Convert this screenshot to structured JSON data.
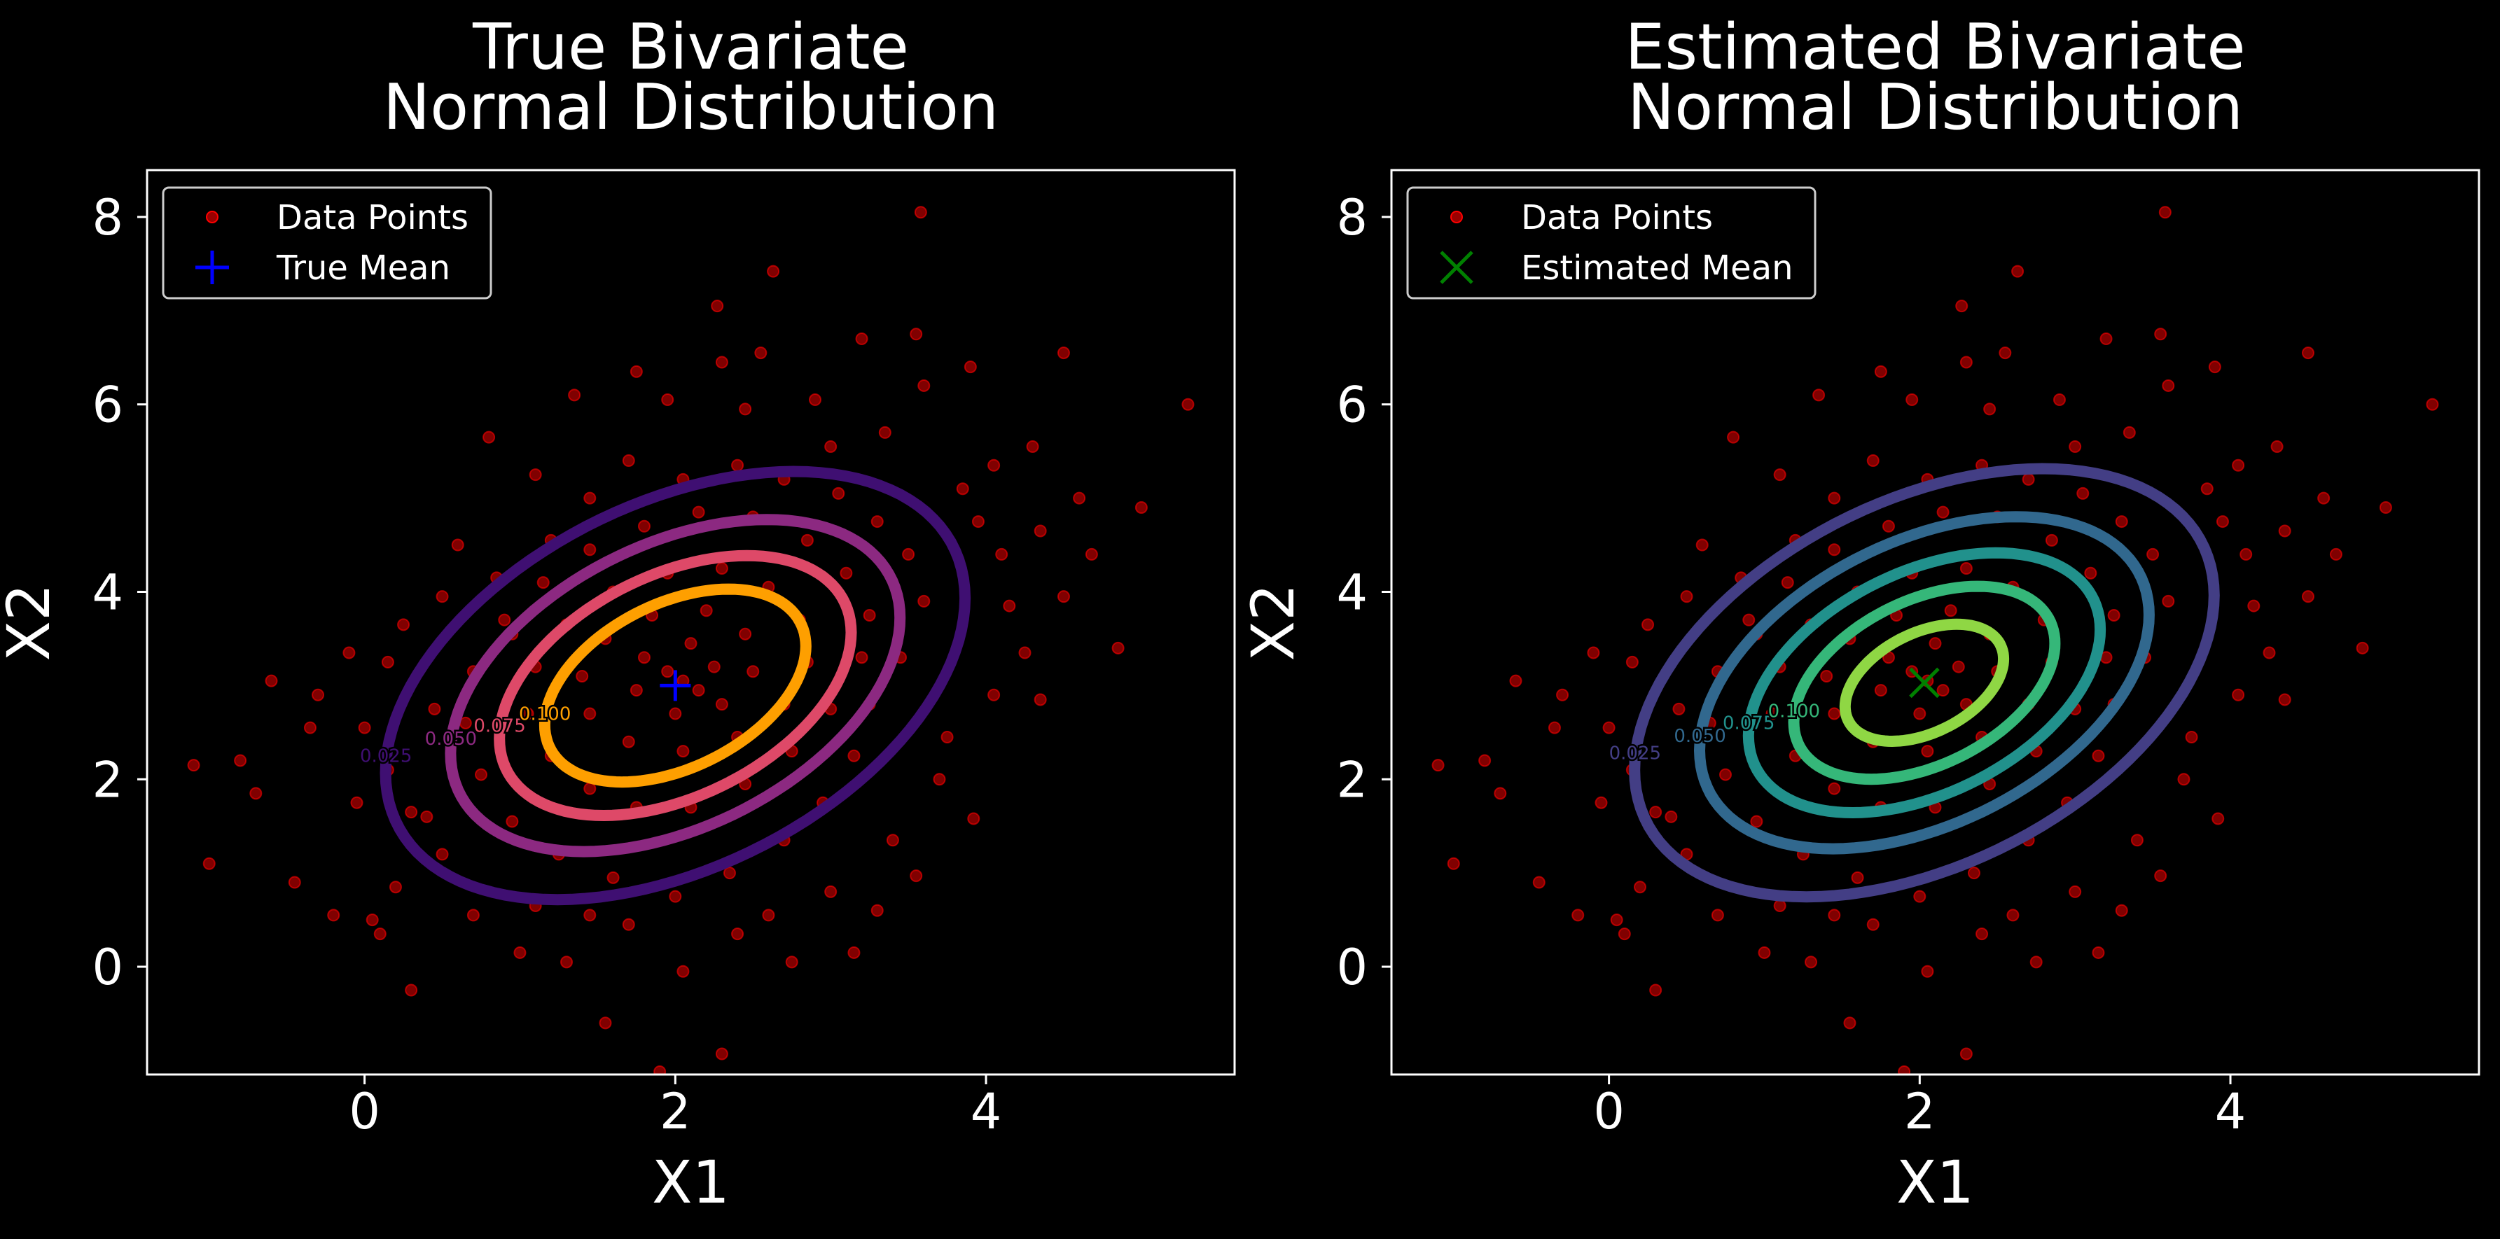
{
  "figure": {
    "background": "#000000",
    "foreground": "#ffffff"
  },
  "chart_data": [
    {
      "type": "scatter",
      "title": "True Bivariate\nNormal Distribution",
      "xlabel": "X1",
      "ylabel": "X2",
      "xlim": [
        -1.4,
        5.6
      ],
      "ylim": [
        -1.15,
        8.5
      ],
      "xticks": [
        0,
        2,
        4
      ],
      "yticks": [
        0,
        2,
        4,
        6,
        8
      ],
      "grid": false,
      "legend": {
        "location": "upper-left",
        "entries": [
          {
            "label": "Data Points",
            "marker": "dot",
            "color": "#ff0000"
          },
          {
            "label": "True Mean",
            "marker": "plus",
            "color": "#0000ff"
          }
        ]
      },
      "mean": {
        "x": 2.0,
        "y": 3.0,
        "marker": "plus",
        "color": "#0000ff"
      },
      "contours": {
        "center": [
          2.0,
          3.0
        ],
        "covariance": [
          [
            1.0,
            0.5
          ],
          [
            0.5,
            1.5
          ]
        ],
        "levels": [
          {
            "level": 0.025,
            "label": "0.025",
            "color": "#3f0f72"
          },
          {
            "level": 0.05,
            "label": "0.050",
            "color": "#8c2981"
          },
          {
            "level": 0.075,
            "label": "0.075",
            "color": "#de4968"
          },
          {
            "level": 0.1,
            "label": "0.100",
            "color": "#fe9f00"
          }
        ]
      },
      "point_color": "#ff0000"
    },
    {
      "type": "scatter",
      "title": "Estimated Bivariate\nNormal Distribution",
      "xlabel": "X1",
      "ylabel": "X2",
      "xlim": [
        -1.4,
        5.6
      ],
      "ylim": [
        -1.15,
        8.5
      ],
      "xticks": [
        0,
        2,
        4
      ],
      "yticks": [
        0,
        2,
        4,
        6,
        8
      ],
      "grid": false,
      "legend": {
        "location": "upper-left",
        "entries": [
          {
            "label": "Data Points",
            "marker": "dot",
            "color": "#ff0000"
          },
          {
            "label": "Estimated Mean",
            "marker": "x",
            "color": "#008000"
          }
        ]
      },
      "mean": {
        "x": 2.03,
        "y": 3.03,
        "marker": "x",
        "color": "#008000"
      },
      "contours": {
        "center": [
          2.03,
          3.03
        ],
        "covariance": [
          [
            1.0,
            0.5
          ],
          [
            0.5,
            1.5
          ]
        ],
        "levels": [
          {
            "level": 0.025,
            "label": "0.025",
            "color": "#433e85"
          },
          {
            "level": 0.05,
            "label": "0.050",
            "color": "#31688e"
          },
          {
            "level": 0.075,
            "label": "0.075",
            "color": "#21918c"
          },
          {
            "level": 0.1,
            "label": "0.100",
            "color": "#35b779"
          },
          {
            "level": 0.125,
            "label": "",
            "color": "#8fd744"
          }
        ]
      },
      "point_color": "#ff0000"
    }
  ],
  "shared_points": [
    [
      5.3,
      6.0
    ],
    [
      3.58,
      8.05
    ],
    [
      2.27,
      7.05
    ],
    [
      2.63,
      7.42
    ],
    [
      4.85,
      3.4
    ],
    [
      4.68,
      4.4
    ],
    [
      4.5,
      6.55
    ],
    [
      4.35,
      4.65
    ],
    [
      4.15,
      3.85
    ],
    [
      3.92,
      1.58
    ],
    [
      3.55,
      6.75
    ],
    [
      3.2,
      6.7
    ],
    [
      3.55,
      0.97
    ],
    [
      3.15,
      0.15
    ],
    [
      2.3,
      -0.93
    ],
    [
      1.9,
      -1.12
    ],
    [
      1.55,
      -0.6
    ],
    [
      1.3,
      0.05
    ],
    [
      -1.1,
      2.15
    ],
    [
      -1.0,
      1.1
    ],
    [
      -0.7,
      1.85
    ],
    [
      -0.8,
      2.2
    ],
    [
      -0.45,
      0.9
    ],
    [
      -0.35,
      2.55
    ],
    [
      -0.2,
      0.55
    ],
    [
      0.05,
      0.5
    ],
    [
      0.3,
      -0.25
    ],
    [
      0.2,
      0.85
    ],
    [
      0.0,
      2.55
    ],
    [
      -0.1,
      3.35
    ],
    [
      0.15,
      3.25
    ],
    [
      0.6,
      4.5
    ],
    [
      0.8,
      5.65
    ],
    [
      1.1,
      5.25
    ],
    [
      1.35,
      6.1
    ],
    [
      1.95,
      6.05
    ],
    [
      2.3,
      6.45
    ],
    [
      2.45,
      5.95
    ],
    [
      2.9,
      6.05
    ],
    [
      3.0,
      5.55
    ],
    [
      3.35,
      5.7
    ],
    [
      3.6,
      6.2
    ],
    [
      3.85,
      5.1
    ],
    [
      4.05,
      5.35
    ],
    [
      4.3,
      5.55
    ],
    [
      4.1,
      4.4
    ],
    [
      4.5,
      3.95
    ],
    [
      4.35,
      2.85
    ],
    [
      4.25,
      3.35
    ],
    [
      3.75,
      2.45
    ],
    [
      3.4,
      1.35
    ],
    [
      3.3,
      0.6
    ],
    [
      3.0,
      0.8
    ],
    [
      2.75,
      0.05
    ],
    [
      2.4,
      0.35
    ],
    [
      2.05,
      -0.05
    ],
    [
      1.7,
      0.45
    ],
    [
      1.45,
      0.55
    ],
    [
      1.0,
      0.15
    ],
    [
      0.7,
      0.55
    ],
    [
      0.5,
      1.2
    ],
    [
      0.3,
      1.65
    ],
    [
      0.15,
      2.1
    ],
    [
      0.45,
      2.75
    ],
    [
      0.25,
      3.65
    ],
    [
      0.5,
      3.95
    ],
    [
      0.85,
      4.15
    ],
    [
      0.95,
      3.55
    ],
    [
      1.2,
      4.55
    ],
    [
      1.45,
      5.0
    ],
    [
      1.7,
      5.4
    ],
    [
      2.05,
      5.2
    ],
    [
      2.4,
      5.35
    ],
    [
      2.7,
      5.2
    ],
    [
      3.05,
      5.05
    ],
    [
      3.3,
      4.75
    ],
    [
      3.5,
      4.4
    ],
    [
      3.6,
      3.9
    ],
    [
      3.45,
      3.3
    ],
    [
      3.25,
      2.8
    ],
    [
      3.15,
      2.25
    ],
    [
      2.95,
      1.75
    ],
    [
      2.7,
      1.35
    ],
    [
      2.35,
      1.0
    ],
    [
      2.0,
      0.75
    ],
    [
      1.6,
      0.95
    ],
    [
      1.25,
      1.2
    ],
    [
      0.95,
      1.55
    ],
    [
      0.75,
      2.05
    ],
    [
      0.65,
      2.6
    ],
    [
      0.7,
      3.15
    ],
    [
      0.9,
      3.7
    ],
    [
      1.15,
      4.1
    ],
    [
      1.45,
      4.45
    ],
    [
      1.8,
      4.7
    ],
    [
      2.15,
      4.85
    ],
    [
      2.5,
      4.8
    ],
    [
      2.85,
      4.55
    ],
    [
      3.1,
      4.2
    ],
    [
      3.25,
      3.75
    ],
    [
      3.2,
      3.3
    ],
    [
      3.0,
      2.75
    ],
    [
      2.75,
      2.3
    ],
    [
      2.45,
      1.95
    ],
    [
      2.1,
      1.7
    ],
    [
      1.75,
      1.7
    ],
    [
      1.45,
      1.9
    ],
    [
      1.2,
      2.25
    ],
    [
      1.05,
      2.7
    ],
    [
      1.1,
      3.2
    ],
    [
      1.3,
      3.65
    ],
    [
      1.6,
      4.0
    ],
    [
      1.95,
      4.2
    ],
    [
      2.3,
      4.25
    ],
    [
      2.6,
      4.05
    ],
    [
      2.8,
      3.7
    ],
    [
      2.85,
      3.25
    ],
    [
      2.7,
      2.8
    ],
    [
      2.4,
      2.45
    ],
    [
      2.05,
      2.3
    ],
    [
      1.7,
      2.4
    ],
    [
      1.45,
      2.7
    ],
    [
      1.4,
      3.1
    ],
    [
      1.55,
      3.5
    ],
    [
      1.85,
      3.75
    ],
    [
      2.2,
      3.8
    ],
    [
      2.45,
      3.55
    ],
    [
      2.5,
      3.15
    ],
    [
      2.3,
      2.8
    ],
    [
      2.0,
      2.7
    ],
    [
      1.75,
      2.95
    ],
    [
      1.8,
      3.3
    ],
    [
      2.1,
      3.45
    ],
    [
      2.25,
      3.2
    ],
    [
      2.05,
      3.05
    ],
    [
      1.95,
      3.15
    ],
    [
      2.15,
      2.95
    ],
    [
      -0.6,
      3.05
    ],
    [
      -0.3,
      2.9
    ],
    [
      -0.05,
      1.75
    ],
    [
      5.0,
      4.9
    ],
    [
      4.6,
      5.0
    ],
    [
      3.9,
      6.4
    ],
    [
      2.55,
      6.55
    ],
    [
      1.75,
      6.35
    ],
    [
      0.4,
      1.6
    ],
    [
      0.1,
      0.35
    ],
    [
      1.1,
      0.65
    ],
    [
      2.6,
      0.55
    ],
    [
      3.7,
      2.0
    ],
    [
      4.05,
      2.9
    ],
    [
      3.95,
      4.75
    ]
  ]
}
